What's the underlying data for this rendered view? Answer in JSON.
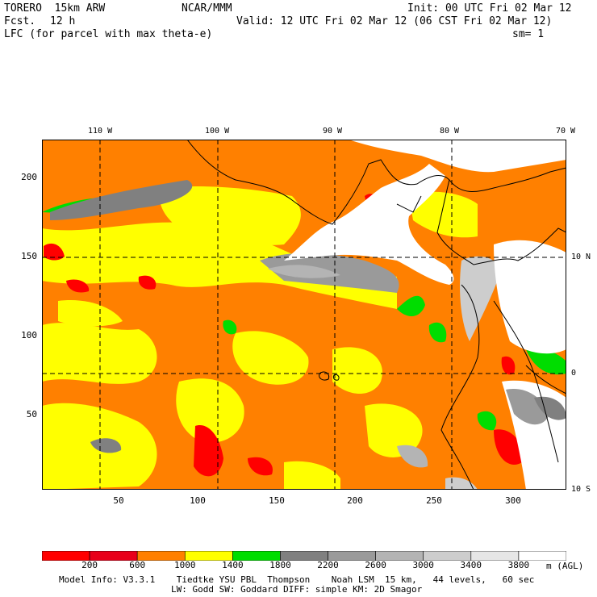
{
  "header": {
    "model": "TORERO  15km ARW",
    "org": "NCAR/MMM",
    "init": "Init: 00 UTC Fri 02 Mar 12",
    "fcst_label": "Fcst.",
    "fcst_value": "12 h",
    "valid": "Valid: 12 UTC Fri 02 Mar 12 (06 CST Fri 02 Mar 12)",
    "field": "LFC (for parcel with max theta-e)",
    "smoothing": "sm= 1"
  },
  "map": {
    "lon_labels": [
      "110 W",
      "100 W",
      "90 W",
      "80 W",
      "70 W"
    ],
    "lat_labels_right": [
      "10 N",
      "0",
      "10 S"
    ],
    "y_ticks": [
      "200",
      "150",
      "100",
      "50"
    ],
    "x_ticks": [
      "50",
      "100",
      "150",
      "200",
      "250",
      "300"
    ]
  },
  "colorbar": {
    "labels": [
      "200",
      "600",
      "1000",
      "1400",
      "1800",
      "2200",
      "2600",
      "3000",
      "3400",
      "3800"
    ],
    "units": "m (AGL)",
    "colors": [
      "#ff0000",
      "#e8001a",
      "#ff8000",
      "#ffff00",
      "#00dd00",
      "#808080",
      "#9a9a9a",
      "#b4b4b4",
      "#cdcdcd",
      "#e6e6e6",
      "#ffffff"
    ]
  },
  "footer": {
    "line1": "Model Info: V3.3.1    Tiedtke YSU PBL  Thompson    Noah LSM  15 km,   44 levels,   60 sec",
    "line2": "LW: Godd SW: Goddard DIFF: simple KM: 2D Smagor"
  }
}
